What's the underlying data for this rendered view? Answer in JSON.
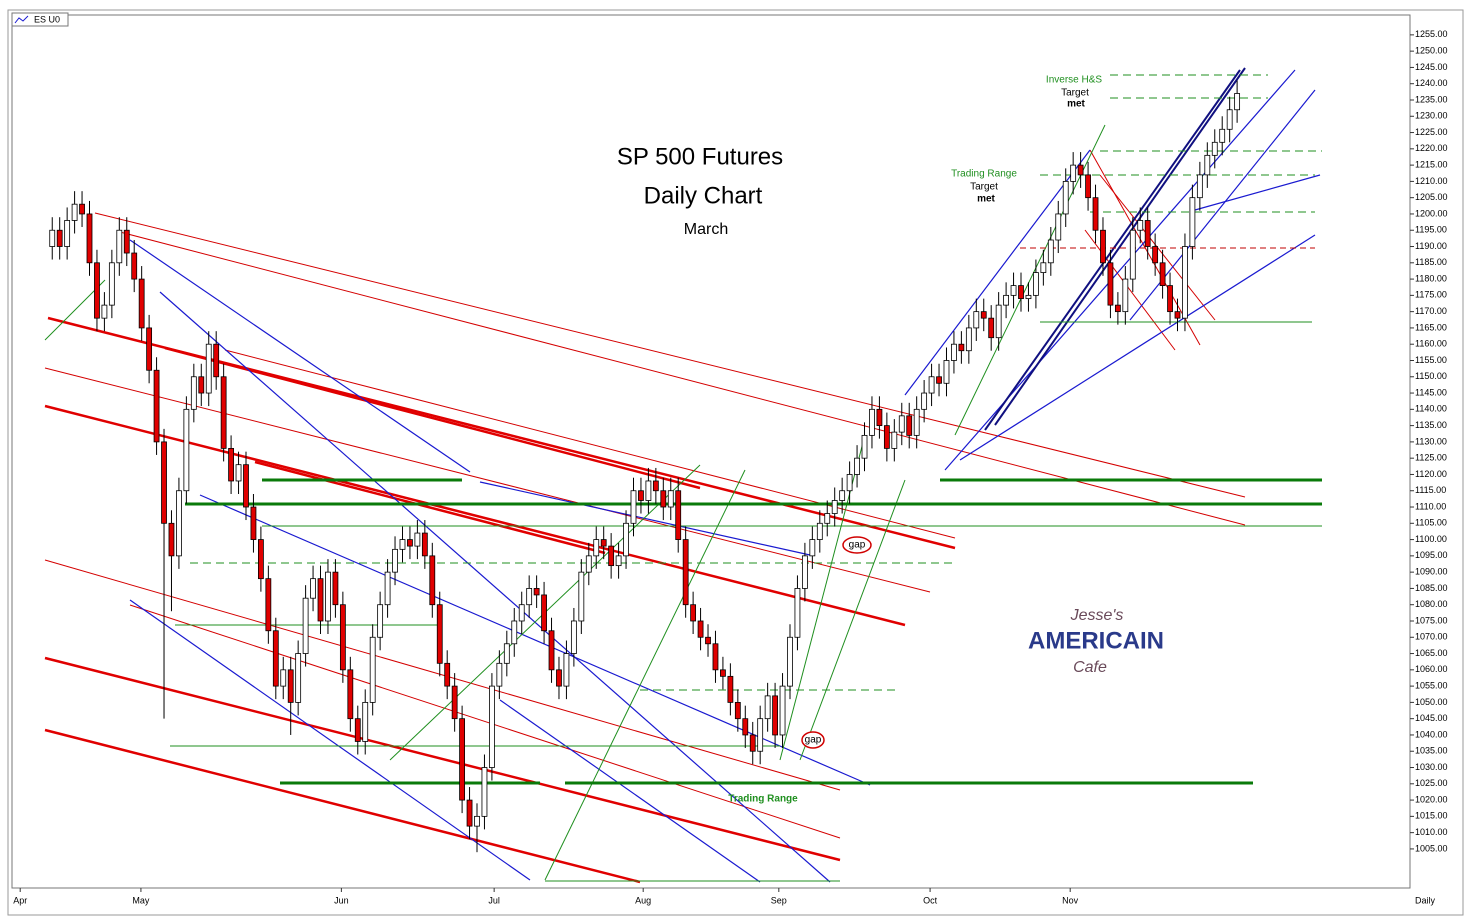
{
  "chart_data": {
    "type": "candlestick",
    "title": "SP 500 Futures",
    "subtitle": "Daily Chart",
    "period": "March",
    "symbol": "ES U0",
    "x_axis_label": "Daily",
    "notes": [
      "Inverse H&S",
      "Target",
      "met",
      "Trading Range",
      "Target",
      "met",
      "Trading Range",
      "gap",
      "gap"
    ],
    "logo": [
      "Jesse's",
      "AMERICAIN",
      "Cafe"
    ],
    "up_color": "#ffffff",
    "down_color": "#e00000",
    "xlim": [
      -5.4,
      182.2
    ],
    "xticks": [
      {
        "value": -4.3,
        "label": "Apr"
      },
      {
        "value": 11.9,
        "label": "May"
      },
      {
        "value": 38.8,
        "label": "Jun"
      },
      {
        "value": 59.3,
        "label": "Jul"
      },
      {
        "value": 79.3,
        "label": "Aug"
      },
      {
        "value": 97.5,
        "label": "Sep"
      },
      {
        "value": 117.8,
        "label": "Oct"
      },
      {
        "value": 136.6,
        "label": "Nov"
      }
    ],
    "ylim": [
      993,
      1261.1
    ],
    "yticks": [
      {
        "value": 1005,
        "label": "1005.00"
      },
      {
        "value": 1010,
        "label": "1010.00"
      },
      {
        "value": 1015,
        "label": "1015.00"
      },
      {
        "value": 1020,
        "label": "1020.00"
      },
      {
        "value": 1025,
        "label": "1025.00"
      },
      {
        "value": 1030,
        "label": "1030.00"
      },
      {
        "value": 1035,
        "label": "1035.00"
      },
      {
        "value": 1040,
        "label": "1040.00"
      },
      {
        "value": 1045,
        "label": "1045.00"
      },
      {
        "value": 1050,
        "label": "1050.00"
      },
      {
        "value": 1055,
        "label": "1055.00"
      },
      {
        "value": 1060,
        "label": "1060.00"
      },
      {
        "value": 1065,
        "label": "1065.00"
      },
      {
        "value": 1070,
        "label": "1070.00"
      },
      {
        "value": 1075,
        "label": "1075.00"
      },
      {
        "value": 1080,
        "label": "1080.00"
      },
      {
        "value": 1085,
        "label": "1085.00"
      },
      {
        "value": 1090,
        "label": "1090.00"
      },
      {
        "value": 1095,
        "label": "1095.00"
      },
      {
        "value": 1100,
        "label": "1100.00"
      },
      {
        "value": 1105,
        "label": "1105.00"
      },
      {
        "value": 1110,
        "label": "1110.00"
      },
      {
        "value": 1115,
        "label": "1115.00"
      },
      {
        "value": 1120,
        "label": "1120.00"
      },
      {
        "value": 1125,
        "label": "1125.00"
      },
      {
        "value": 1130,
        "label": "1130.00"
      },
      {
        "value": 1135,
        "label": "1135.00"
      },
      {
        "value": 1140,
        "label": "1140.00"
      },
      {
        "value": 1145,
        "label": "1145.00"
      },
      {
        "value": 1150,
        "label": "1150.00"
      },
      {
        "value": 1155,
        "label": "1155.00"
      },
      {
        "value": 1160,
        "label": "1160.00"
      },
      {
        "value": 1165,
        "label": "1165.00"
      },
      {
        "value": 1170,
        "label": "1170.00"
      },
      {
        "value": 1175,
        "label": "1175.00"
      },
      {
        "value": 1180,
        "label": "1180.00"
      },
      {
        "value": 1185,
        "label": "1185.00"
      },
      {
        "value": 1190,
        "label": "1190.00"
      },
      {
        "value": 1195,
        "label": "1195.00"
      },
      {
        "value": 1200,
        "label": "1200.00"
      },
      {
        "value": 1205,
        "label": "1205.00"
      },
      {
        "value": 1210,
        "label": "1210.00"
      },
      {
        "value": 1215,
        "label": "1215.00"
      },
      {
        "value": 1220,
        "label": "1220.00"
      },
      {
        "value": 1225,
        "label": "1225.00"
      },
      {
        "value": 1230,
        "label": "1230.00"
      },
      {
        "value": 1235,
        "label": "1235.00"
      },
      {
        "value": 1240,
        "label": "1240.00"
      },
      {
        "value": 1245,
        "label": "1245.00"
      },
      {
        "value": 1250,
        "label": "1250.00"
      },
      {
        "value": 1255,
        "label": "1255.00"
      }
    ],
    "ohlc": [
      [
        1190,
        1199,
        1186,
        1195
      ],
      [
        1195,
        1199,
        1186,
        1190
      ],
      [
        1190,
        1202,
        1186,
        1198
      ],
      [
        1198,
        1207,
        1194,
        1203
      ],
      [
        1203,
        1207,
        1196,
        1200
      ],
      [
        1200,
        1204,
        1181,
        1185
      ],
      [
        1185,
        1189,
        1164,
        1168
      ],
      [
        1168,
        1176,
        1164,
        1172
      ],
      [
        1172,
        1189,
        1168,
        1185
      ],
      [
        1185,
        1199,
        1181,
        1195
      ],
      [
        1195,
        1199,
        1184,
        1188
      ],
      [
        1188,
        1192,
        1176,
        1180
      ],
      [
        1180,
        1184,
        1161,
        1165
      ],
      [
        1165,
        1169,
        1148,
        1152
      ],
      [
        1152,
        1156,
        1126,
        1130
      ],
      [
        1130,
        1134,
        1045,
        1105
      ],
      [
        1105,
        1109,
        1078,
        1095
      ],
      [
        1095,
        1119,
        1091,
        1115
      ],
      [
        1115,
        1144,
        1111,
        1140
      ],
      [
        1140,
        1154,
        1136,
        1150
      ],
      [
        1150,
        1154,
        1141,
        1145
      ],
      [
        1145,
        1164,
        1141,
        1160
      ],
      [
        1160,
        1164,
        1146,
        1150
      ],
      [
        1150,
        1154,
        1124,
        1128
      ],
      [
        1128,
        1132,
        1114,
        1118
      ],
      [
        1118,
        1127,
        1114,
        1123
      ],
      [
        1123,
        1127,
        1106,
        1110
      ],
      [
        1110,
        1114,
        1096,
        1100
      ],
      [
        1100,
        1104,
        1084,
        1088
      ],
      [
        1088,
        1092,
        1068,
        1072
      ],
      [
        1072,
        1076,
        1051,
        1055
      ],
      [
        1055,
        1064,
        1051,
        1060
      ],
      [
        1060,
        1064,
        1040,
        1050
      ],
      [
        1050,
        1069,
        1046,
        1065
      ],
      [
        1065,
        1086,
        1061,
        1082
      ],
      [
        1082,
        1092,
        1078,
        1088
      ],
      [
        1088,
        1092,
        1071,
        1075
      ],
      [
        1075,
        1094,
        1071,
        1090
      ],
      [
        1090,
        1094,
        1076,
        1080
      ],
      [
        1080,
        1084,
        1056,
        1060
      ],
      [
        1060,
        1064,
        1041,
        1045
      ],
      [
        1045,
        1049,
        1034,
        1038
      ],
      [
        1038,
        1054,
        1034,
        1050
      ],
      [
        1050,
        1074,
        1046,
        1070
      ],
      [
        1070,
        1084,
        1066,
        1080
      ],
      [
        1080,
        1094,
        1076,
        1090
      ],
      [
        1090,
        1101,
        1086,
        1097
      ],
      [
        1097,
        1104,
        1093,
        1100
      ],
      [
        1100,
        1104,
        1094,
        1098
      ],
      [
        1098,
        1106,
        1094,
        1102
      ],
      [
        1102,
        1106,
        1091,
        1095
      ],
      [
        1095,
        1099,
        1076,
        1080
      ],
      [
        1080,
        1084,
        1058,
        1062
      ],
      [
        1062,
        1066,
        1051,
        1055
      ],
      [
        1055,
        1059,
        1041,
        1045
      ],
      [
        1045,
        1049,
        1016,
        1020
      ],
      [
        1020,
        1024,
        1008,
        1012
      ],
      [
        1012,
        1019,
        1004,
        1015
      ],
      [
        1015,
        1034,
        1011,
        1030
      ],
      [
        1030,
        1059,
        1026,
        1055
      ],
      [
        1055,
        1066,
        1051,
        1062
      ],
      [
        1062,
        1072,
        1058,
        1068
      ],
      [
        1068,
        1079,
        1064,
        1075
      ],
      [
        1075,
        1084,
        1071,
        1080
      ],
      [
        1080,
        1089,
        1076,
        1085
      ],
      [
        1085,
        1089,
        1079,
        1083
      ],
      [
        1083,
        1087,
        1068,
        1072
      ],
      [
        1072,
        1076,
        1056,
        1060
      ],
      [
        1060,
        1064,
        1051,
        1055
      ],
      [
        1055,
        1069,
        1051,
        1065
      ],
      [
        1065,
        1079,
        1061,
        1075
      ],
      [
        1075,
        1094,
        1071,
        1090
      ],
      [
        1090,
        1099,
        1086,
        1095
      ],
      [
        1095,
        1104,
        1091,
        1100
      ],
      [
        1100,
        1104,
        1094,
        1098
      ],
      [
        1098,
        1102,
        1088,
        1092
      ],
      [
        1092,
        1099,
        1088,
        1095
      ],
      [
        1095,
        1109,
        1091,
        1105
      ],
      [
        1105,
        1119,
        1101,
        1115
      ],
      [
        1115,
        1119,
        1108,
        1112
      ],
      [
        1112,
        1122,
        1108,
        1118
      ],
      [
        1118,
        1122,
        1111,
        1115
      ],
      [
        1115,
        1119,
        1106,
        1110
      ],
      [
        1110,
        1119,
        1106,
        1115
      ],
      [
        1115,
        1119,
        1096,
        1100
      ],
      [
        1100,
        1104,
        1076,
        1080
      ],
      [
        1080,
        1084,
        1071,
        1075
      ],
      [
        1075,
        1079,
        1066,
        1070
      ],
      [
        1070,
        1074,
        1064,
        1068
      ],
      [
        1068,
        1072,
        1056,
        1060
      ],
      [
        1060,
        1064,
        1054,
        1058
      ],
      [
        1058,
        1062,
        1046,
        1050
      ],
      [
        1050,
        1054,
        1041,
        1045
      ],
      [
        1045,
        1049,
        1036,
        1040
      ],
      [
        1040,
        1044,
        1031,
        1035
      ],
      [
        1035,
        1049,
        1031,
        1045
      ],
      [
        1045,
        1056,
        1041,
        1052
      ],
      [
        1052,
        1056,
        1036,
        1040
      ],
      [
        1040,
        1059,
        1036,
        1055
      ],
      [
        1055,
        1074,
        1051,
        1070
      ],
      [
        1070,
        1089,
        1066,
        1085
      ],
      [
        1085,
        1099,
        1081,
        1095
      ],
      [
        1095,
        1104,
        1091,
        1100
      ],
      [
        1100,
        1109,
        1096,
        1105
      ],
      [
        1105,
        1112,
        1101,
        1108
      ],
      [
        1108,
        1116,
        1104,
        1112
      ],
      [
        1112,
        1119,
        1108,
        1115
      ],
      [
        1115,
        1124,
        1111,
        1120
      ],
      [
        1120,
        1129,
        1116,
        1125
      ],
      [
        1125,
        1136,
        1121,
        1132
      ],
      [
        1132,
        1144,
        1128,
        1140
      ],
      [
        1140,
        1144,
        1131,
        1135
      ],
      [
        1135,
        1139,
        1124,
        1128
      ],
      [
        1128,
        1137,
        1124,
        1133
      ],
      [
        1133,
        1142,
        1129,
        1138
      ],
      [
        1138,
        1142,
        1128,
        1132
      ],
      [
        1132,
        1144,
        1128,
        1140
      ],
      [
        1140,
        1149,
        1136,
        1145
      ],
      [
        1145,
        1154,
        1141,
        1150
      ],
      [
        1150,
        1154,
        1144,
        1148
      ],
      [
        1148,
        1159,
        1144,
        1155
      ],
      [
        1155,
        1164,
        1151,
        1160
      ],
      [
        1160,
        1164,
        1154,
        1158
      ],
      [
        1158,
        1169,
        1154,
        1165
      ],
      [
        1165,
        1174,
        1161,
        1170
      ],
      [
        1170,
        1174,
        1164,
        1168
      ],
      [
        1168,
        1172,
        1158,
        1162
      ],
      [
        1162,
        1176,
        1158,
        1172
      ],
      [
        1172,
        1179,
        1168,
        1175
      ],
      [
        1175,
        1182,
        1171,
        1178
      ],
      [
        1178,
        1182,
        1170,
        1174
      ],
      [
        1174,
        1179,
        1170,
        1175
      ],
      [
        1175,
        1186,
        1171,
        1182
      ],
      [
        1182,
        1189,
        1178,
        1185
      ],
      [
        1185,
        1196,
        1181,
        1192
      ],
      [
        1192,
        1204,
        1188,
        1200
      ],
      [
        1200,
        1214,
        1196,
        1210
      ],
      [
        1210,
        1219,
        1206,
        1215
      ],
      [
        1215,
        1219,
        1208,
        1212
      ],
      [
        1212,
        1216,
        1201,
        1205
      ],
      [
        1205,
        1209,
        1191,
        1195
      ],
      [
        1195,
        1199,
        1181,
        1185
      ],
      [
        1185,
        1189,
        1168,
        1172
      ],
      [
        1172,
        1176,
        1166,
        1170
      ],
      [
        1170,
        1184,
        1166,
        1180
      ],
      [
        1180,
        1199,
        1176,
        1195
      ],
      [
        1195,
        1202,
        1191,
        1198
      ],
      [
        1198,
        1202,
        1186,
        1190
      ],
      [
        1190,
        1194,
        1181,
        1185
      ],
      [
        1185,
        1189,
        1174,
        1178
      ],
      [
        1178,
        1182,
        1166,
        1170
      ],
      [
        1170,
        1174,
        1164,
        1168
      ],
      [
        1168,
        1194,
        1164,
        1190
      ],
      [
        1190,
        1209,
        1186,
        1205
      ],
      [
        1205,
        1216,
        1201,
        1212
      ],
      [
        1212,
        1222,
        1208,
        1218
      ],
      [
        1218,
        1226,
        1214,
        1222
      ],
      [
        1222,
        1230,
        1218,
        1226
      ],
      [
        1226,
        1236,
        1222,
        1232
      ],
      [
        1232,
        1241,
        1228,
        1237
      ]
    ]
  }
}
